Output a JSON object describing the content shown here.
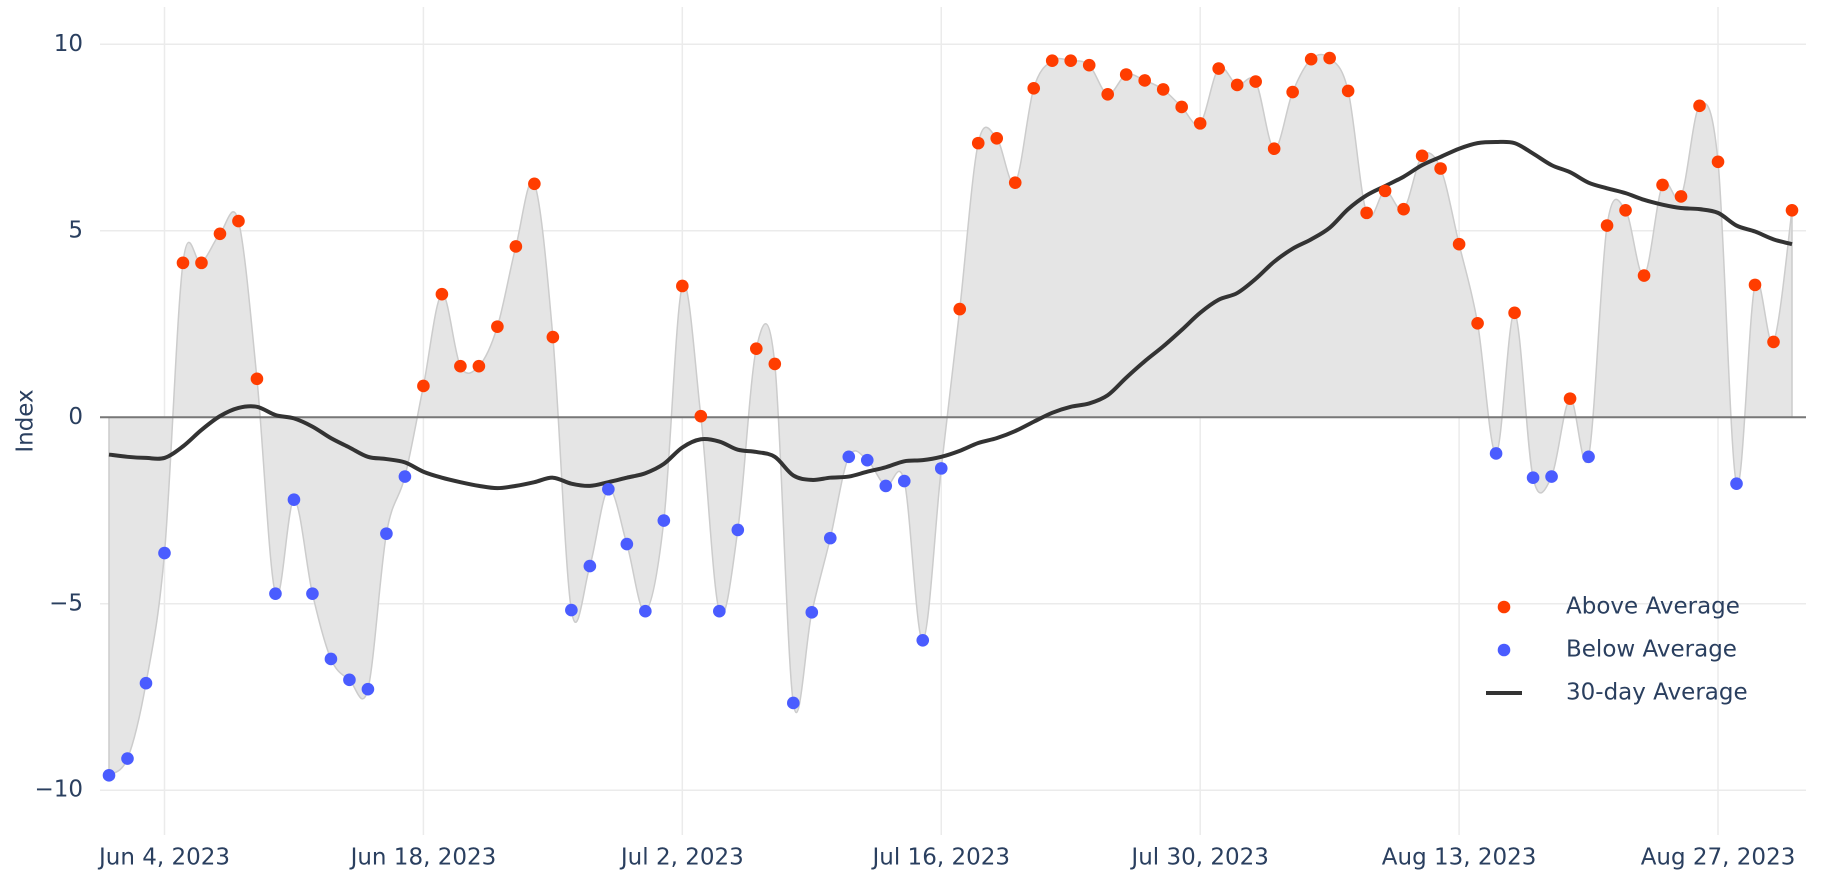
{
  "chart_data": {
    "type": "scatter",
    "y_label": "Index",
    "x": [
      "2023-06-01",
      "2023-06-02",
      "2023-06-03",
      "2023-06-04",
      "2023-06-05",
      "2023-06-06",
      "2023-06-07",
      "2023-06-08",
      "2023-06-09",
      "2023-06-10",
      "2023-06-11",
      "2023-06-12",
      "2023-06-13",
      "2023-06-14",
      "2023-06-15",
      "2023-06-16",
      "2023-06-17",
      "2023-06-18",
      "2023-06-19",
      "2023-06-20",
      "2023-06-21",
      "2023-06-22",
      "2023-06-23",
      "2023-06-24",
      "2023-06-25",
      "2023-06-26",
      "2023-06-27",
      "2023-06-28",
      "2023-06-29",
      "2023-06-30",
      "2023-07-01",
      "2023-07-02",
      "2023-07-03",
      "2023-07-04",
      "2023-07-05",
      "2023-07-06",
      "2023-07-07",
      "2023-07-08",
      "2023-07-09",
      "2023-07-10",
      "2023-07-11",
      "2023-07-12",
      "2023-07-13",
      "2023-07-14",
      "2023-07-15",
      "2023-07-16",
      "2023-07-17",
      "2023-07-18",
      "2023-07-19",
      "2023-07-20",
      "2023-07-21",
      "2023-07-22",
      "2023-07-23",
      "2023-07-24",
      "2023-07-25",
      "2023-07-26",
      "2023-07-27",
      "2023-07-28",
      "2023-07-29",
      "2023-07-30",
      "2023-07-31",
      "2023-08-01",
      "2023-08-02",
      "2023-08-03",
      "2023-08-04",
      "2023-08-05",
      "2023-08-06",
      "2023-08-07",
      "2023-08-08",
      "2023-08-09",
      "2023-08-10",
      "2023-08-11",
      "2023-08-12",
      "2023-08-13",
      "2023-08-14",
      "2023-08-15",
      "2023-08-16",
      "2023-08-17",
      "2023-08-18",
      "2023-08-19",
      "2023-08-20",
      "2023-08-21",
      "2023-08-22",
      "2023-08-23",
      "2023-08-24",
      "2023-08-25",
      "2023-08-26",
      "2023-08-27",
      "2023-08-28",
      "2023-08-29",
      "2023-08-30",
      "2023-08-31"
    ],
    "series": [
      {
        "name": "Above Average",
        "color": "#ff3d00",
        "mode": "markers",
        "values": [
          null,
          null,
          null,
          null,
          4.14,
          4.14,
          4.92,
          5.26,
          1.03,
          null,
          null,
          null,
          null,
          null,
          null,
          null,
          null,
          0.84,
          3.3,
          1.37,
          1.37,
          2.43,
          4.58,
          6.26,
          2.15,
          null,
          null,
          null,
          null,
          null,
          null,
          3.52,
          0.03,
          null,
          null,
          1.84,
          1.43,
          null,
          null,
          null,
          null,
          null,
          null,
          null,
          null,
          null,
          2.9,
          7.35,
          7.48,
          6.29,
          8.82,
          9.56,
          9.56,
          9.44,
          8.66,
          9.19,
          9.03,
          8.79,
          8.32,
          7.88,
          9.35,
          8.91,
          9.0,
          7.2,
          8.72,
          9.6,
          9.63,
          8.75,
          5.48,
          6.07,
          5.58,
          7.01,
          6.67,
          4.64,
          2.52,
          null,
          2.8,
          null,
          null,
          0.5,
          null,
          5.14,
          5.55,
          3.8,
          6.23,
          5.92,
          8.35,
          6.85,
          null,
          3.55,
          2.02,
          5.55
        ]
      },
      {
        "name": "Below Average",
        "color": "#4a5cff",
        "mode": "markers",
        "values": [
          -9.6,
          -9.15,
          -7.13,
          -3.64,
          null,
          null,
          null,
          null,
          null,
          -4.73,
          -2.21,
          -4.73,
          -6.48,
          -7.04,
          -7.29,
          -3.12,
          -1.59,
          null,
          null,
          null,
          null,
          null,
          null,
          null,
          null,
          -5.17,
          -3.99,
          -1.93,
          -3.4,
          -5.2,
          -2.77,
          null,
          null,
          -5.2,
          -3.02,
          null,
          null,
          -7.66,
          -5.23,
          -3.24,
          -1.06,
          -1.15,
          -1.84,
          -1.71,
          -5.98,
          -1.37,
          null,
          null,
          null,
          null,
          null,
          null,
          null,
          null,
          null,
          null,
          null,
          null,
          null,
          null,
          null,
          null,
          null,
          null,
          null,
          null,
          null,
          null,
          null,
          null,
          null,
          null,
          null,
          null,
          null,
          -0.97,
          null,
          -1.62,
          -1.59,
          null,
          -1.06,
          null,
          null,
          null,
          null,
          null,
          null,
          null,
          -1.78,
          null,
          null,
          null
        ]
      },
      {
        "name": "30-day Average",
        "color": "#333333",
        "mode": "line",
        "values": [
          -1.0,
          -1.06,
          -1.09,
          -1.09,
          -0.78,
          -0.34,
          0.03,
          0.25,
          0.28,
          0.06,
          -0.03,
          -0.25,
          -0.56,
          -0.81,
          -1.06,
          -1.12,
          -1.21,
          -1.46,
          -1.62,
          -1.74,
          -1.84,
          -1.9,
          -1.84,
          -1.74,
          -1.62,
          -1.78,
          -1.84,
          -1.74,
          -1.62,
          -1.5,
          -1.25,
          -0.81,
          -0.59,
          -0.65,
          -0.87,
          -0.93,
          -1.06,
          -1.56,
          -1.68,
          -1.62,
          -1.59,
          -1.46,
          -1.34,
          -1.18,
          -1.15,
          -1.06,
          -0.9,
          -0.69,
          -0.56,
          -0.37,
          -0.12,
          0.12,
          0.28,
          0.37,
          0.59,
          1.06,
          1.5,
          1.9,
          2.34,
          2.8,
          3.15,
          3.33,
          3.71,
          4.17,
          4.52,
          4.77,
          5.08,
          5.58,
          5.95,
          6.2,
          6.45,
          6.76,
          6.98,
          7.2,
          7.35,
          7.38,
          7.35,
          7.07,
          6.76,
          6.57,
          6.29,
          6.14,
          6.01,
          5.83,
          5.7,
          5.61,
          5.58,
          5.48,
          5.14,
          4.98,
          4.77,
          4.64
        ]
      }
    ],
    "area_color": "#e5e5e5",
    "xlim": [
      "2023-06-01",
      "2023-08-31"
    ],
    "xticks": [
      {
        "value": "2023-06-04",
        "label": "Jun 4, 2023"
      },
      {
        "value": "2023-06-18",
        "label": "Jun 18, 2023"
      },
      {
        "value": "2023-07-02",
        "label": "Jul 2, 2023"
      },
      {
        "value": "2023-07-16",
        "label": "Jul 16, 2023"
      },
      {
        "value": "2023-07-30",
        "label": "Jul 30, 2023"
      },
      {
        "value": "2023-08-13",
        "label": "Aug 13, 2023"
      },
      {
        "value": "2023-08-27",
        "label": "Aug 27, 2023"
      }
    ],
    "ylim": [
      -11.2,
      11
    ],
    "yticks": [
      {
        "value": -10,
        "label": "−10"
      },
      {
        "value": -5,
        "label": "−5"
      },
      0,
      5,
      10
    ],
    "grid": true,
    "legend": "bottom right"
  }
}
